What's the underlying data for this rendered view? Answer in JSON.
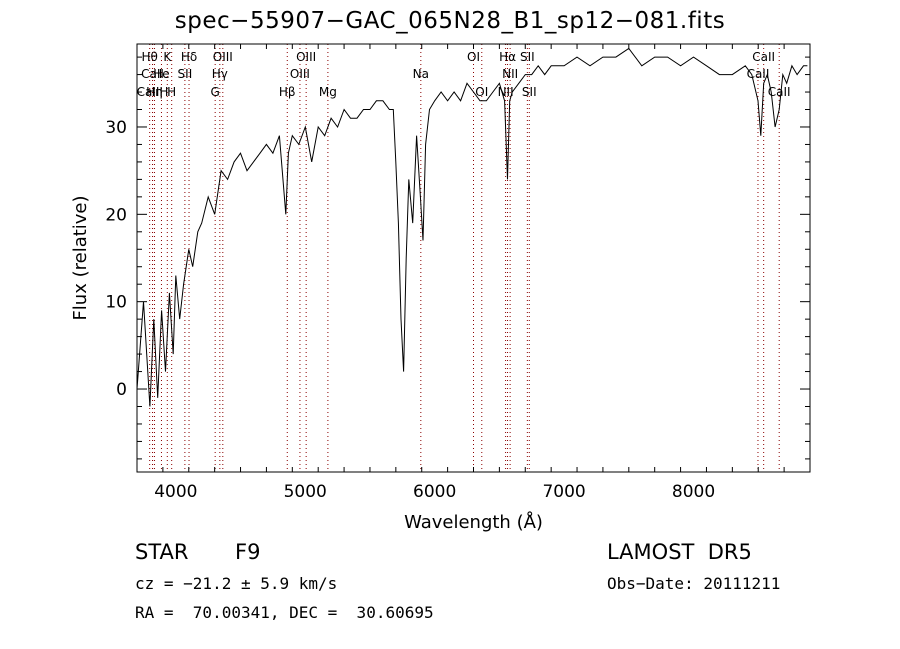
{
  "title": "spec−55907−GAC_065N28_B1_sp12−081.fits",
  "info": {
    "object_type": "STAR",
    "subclass": "F9",
    "survey": "LAMOST  DR5",
    "cz": "cz = −21.2 ± 5.9 km/s",
    "obs_date": "Obs−Date: 20111211",
    "coords": "RA =  70.00341, DEC =  30.60695"
  },
  "chart_data": {
    "type": "line",
    "title": "spec−55907−GAC_065N28_B1_sp12−081.fits",
    "xlabel": "Wavelength (Å)",
    "ylabel": "Flux (relative)",
    "xlim": [
      3700,
      8900
    ],
    "ylim": [
      -9.5,
      39.5
    ],
    "xticks": [
      4000,
      5000,
      6000,
      7000,
      8000
    ],
    "yticks": [
      0,
      10,
      20,
      30
    ],
    "grid": false,
    "line_color": "#000000",
    "marker_color": "#8b0000",
    "series": [
      {
        "x": [
          3700,
          3750,
          3800,
          3830,
          3860,
          3890,
          3920,
          3950,
          3980,
          4000,
          4030,
          4060,
          4100,
          4130,
          4170,
          4200,
          4250,
          4300,
          4350,
          4400,
          4450,
          4500,
          4550,
          4600,
          4650,
          4700,
          4750,
          4800,
          4850,
          4870,
          4900,
          4950,
          5000,
          5050,
          5100,
          5150,
          5200,
          5250,
          5300,
          5350,
          5400,
          5450,
          5500,
          5550,
          5600,
          5650,
          5680,
          5700,
          5720,
          5740,
          5760,
          5780,
          5800,
          5830,
          5860,
          5890,
          5910,
          5930,
          5960,
          6000,
          6050,
          6100,
          6150,
          6200,
          6250,
          6300,
          6350,
          6400,
          6450,
          6500,
          6540,
          6563,
          6580,
          6600,
          6650,
          6700,
          6750,
          6800,
          6850,
          6900,
          6950,
          7000,
          7100,
          7200,
          7300,
          7400,
          7500,
          7600,
          7700,
          7800,
          7900,
          8000,
          8100,
          8200,
          8300,
          8400,
          8450,
          8498,
          8520,
          8542,
          8570,
          8600,
          8630,
          8662,
          8690,
          8720,
          8760,
          8800,
          8850,
          8880
        ],
        "y": [
          0,
          10,
          -2,
          8,
          -1,
          9,
          2,
          11,
          4,
          13,
          8,
          12,
          16,
          14,
          18,
          19,
          22,
          20,
          25,
          24,
          26,
          27,
          25,
          26,
          27,
          28,
          27,
          29,
          20,
          27,
          29,
          28,
          30,
          26,
          30,
          29,
          31,
          30,
          32,
          31,
          31,
          32,
          32,
          33,
          33,
          32,
          32,
          26,
          19,
          8,
          2,
          15,
          24,
          19,
          29,
          22,
          17,
          28,
          32,
          33,
          34,
          33,
          34,
          33,
          35,
          34,
          33,
          33,
          34,
          35,
          33,
          24,
          33,
          34,
          35,
          36,
          36,
          37,
          36,
          37,
          37,
          37,
          38,
          37,
          38,
          38,
          39,
          37,
          38,
          38,
          37,
          38,
          37,
          36,
          36,
          37,
          36,
          33,
          29,
          35,
          36,
          34,
          30,
          32,
          36,
          35,
          37,
          36,
          37,
          37
        ]
      }
    ],
    "line_markers": [
      {
        "label": "Hθ",
        "x": 3798,
        "row": 1
      },
      {
        "label": "CaII",
        "x": 3820,
        "row": 2
      },
      {
        "label": "CaIIH",
        "x": 3820,
        "row": 3
      },
      {
        "label": "K",
        "x": 3934,
        "row": 1
      },
      {
        "label": "He",
        "x": 3889,
        "row": 2
      },
      {
        "label": "Hη",
        "x": 3835,
        "row": 3
      },
      {
        "label": "H",
        "x": 3968,
        "row": 3
      },
      {
        "label": "Hδ",
        "x": 4102,
        "row": 1
      },
      {
        "label": "SII",
        "x": 4070,
        "row": 2
      },
      {
        "label": "OIII",
        "x": 4363,
        "row": 1
      },
      {
        "label": "Hγ",
        "x": 4340,
        "row": 2
      },
      {
        "label": "G",
        "x": 4304,
        "row": 3
      },
      {
        "label": "Hβ",
        "x": 4861,
        "row": 3
      },
      {
        "label": "OIII",
        "x": 5007,
        "row": 1
      },
      {
        "label": "OIII",
        "x": 4959,
        "row": 2
      },
      {
        "label": "Mg",
        "x": 5175,
        "row": 3
      },
      {
        "label": "Na",
        "x": 5893,
        "row": 2
      },
      {
        "label": "OI",
        "x": 6300,
        "row": 1
      },
      {
        "label": "OI",
        "x": 6364,
        "row": 3
      },
      {
        "label": "Hα",
        "x": 6563,
        "row": 1
      },
      {
        "label": "NII",
        "x": 6583,
        "row": 2
      },
      {
        "label": "NII",
        "x": 6548,
        "row": 3
      },
      {
        "label": "SII",
        "x": 6716,
        "row": 1
      },
      {
        "label": "SII",
        "x": 6731,
        "row": 3
      },
      {
        "label": "CaII",
        "x": 8542,
        "row": 1
      },
      {
        "label": "CaII",
        "x": 8498,
        "row": 2
      },
      {
        "label": "CaII",
        "x": 8662,
        "row": 3
      }
    ]
  }
}
